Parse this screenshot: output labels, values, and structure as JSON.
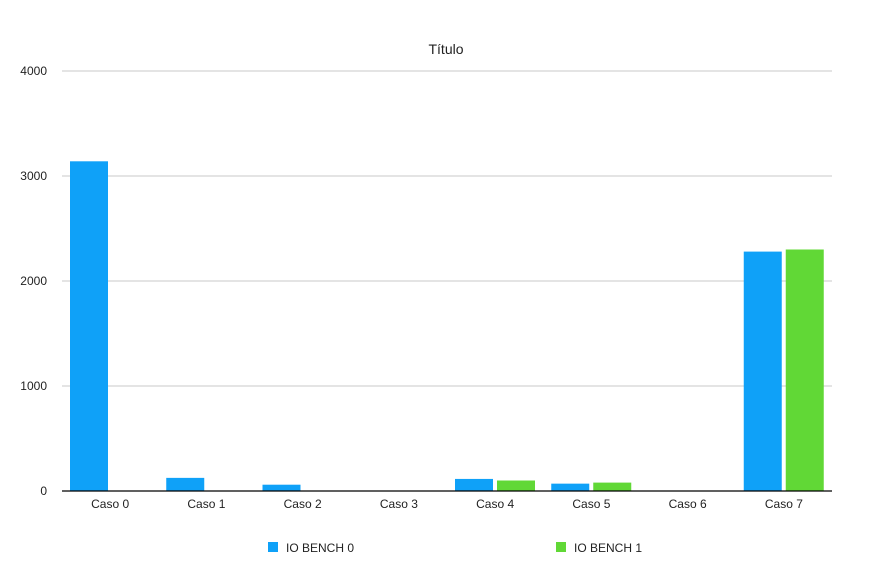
{
  "chart_data": {
    "type": "bar",
    "title": "Título",
    "xlabel": "",
    "ylabel": "",
    "categories": [
      "Caso 0",
      "Caso 1",
      "Caso 2",
      "Caso 3",
      "Caso 4",
      "Caso 5",
      "Caso 6",
      "Caso 7"
    ],
    "series": [
      {
        "name": "IO BENCH 0",
        "color": "#0FA1F8",
        "values": [
          3140,
          125,
          60,
          0,
          115,
          70,
          0,
          2280
        ]
      },
      {
        "name": "IO BENCH 1",
        "color": "#61D836",
        "values": [
          0,
          0,
          0,
          0,
          100,
          80,
          0,
          2300
        ]
      }
    ],
    "ylim": [
      0,
      4000
    ],
    "yticks": [
      "0",
      "1000",
      "2000",
      "3000",
      "4000"
    ],
    "ytick_values": [
      0,
      1000,
      2000,
      3000,
      4000
    ],
    "grid": true,
    "legend_position": "bottom"
  }
}
